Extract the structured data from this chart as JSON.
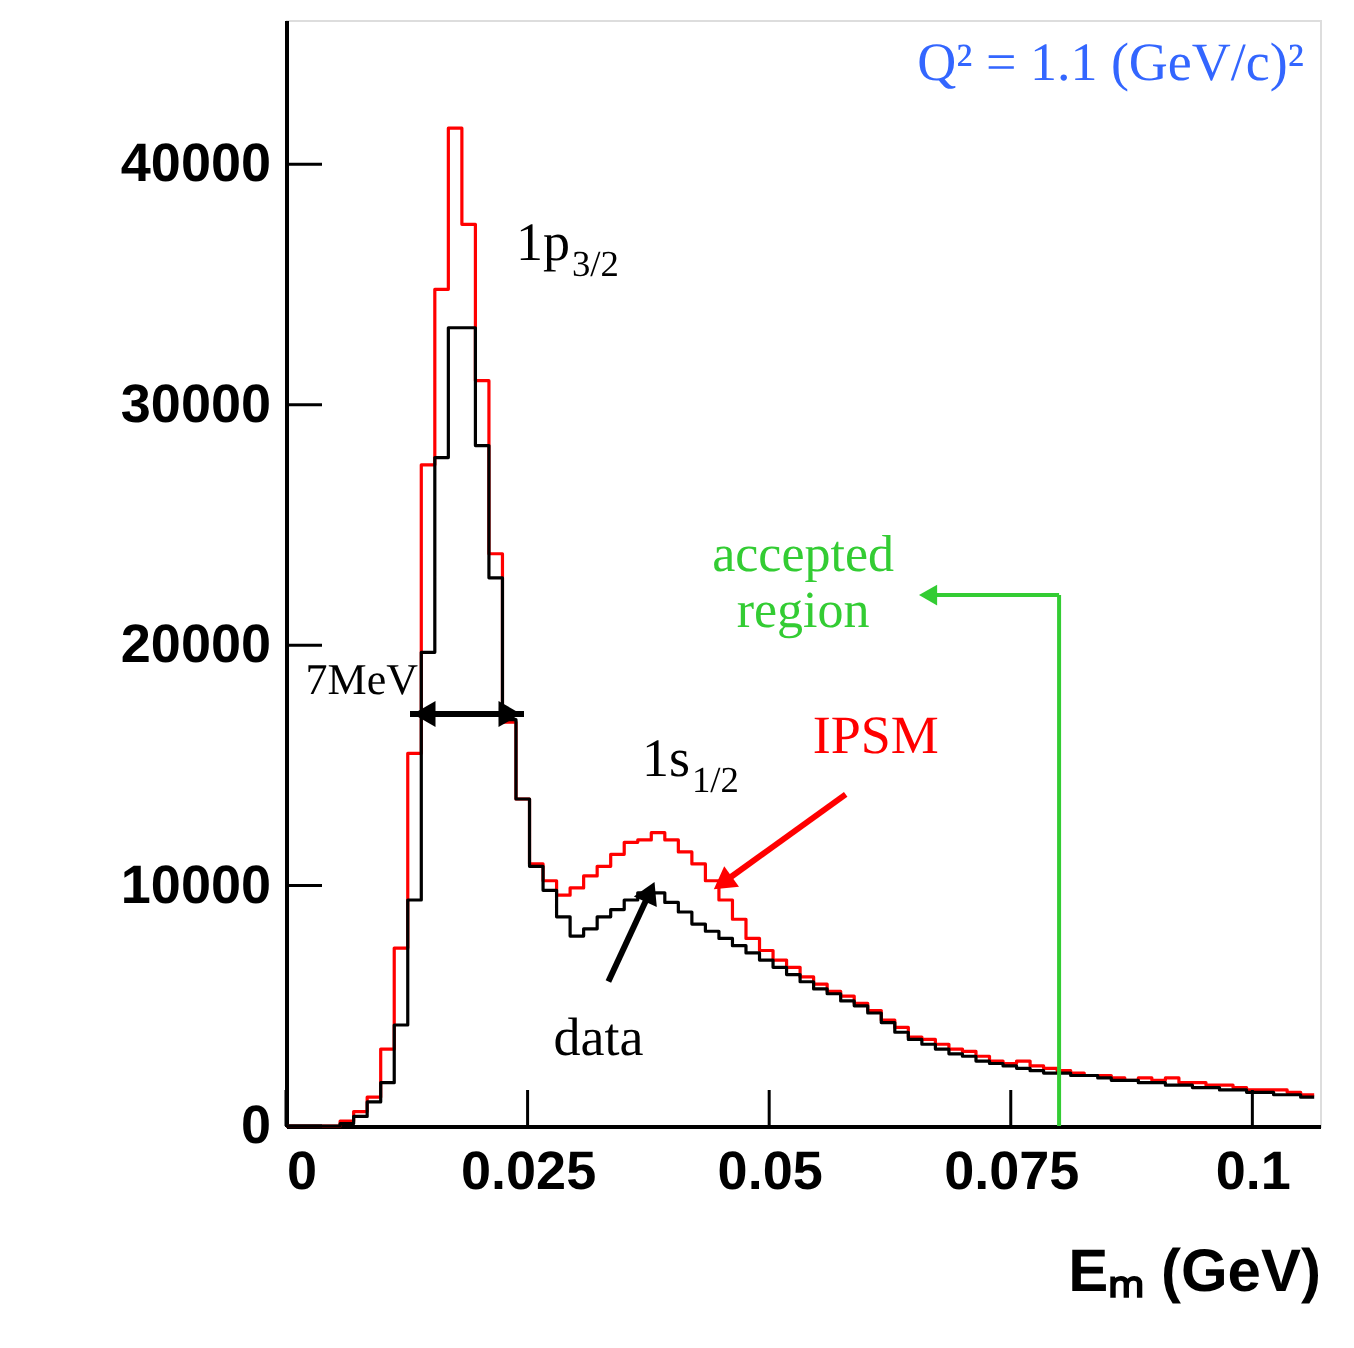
{
  "chart_data": {
    "type": "histogram",
    "xlabel": "Eₘ (GeV)",
    "bins": [
      0,
      0.0014,
      0.0028,
      0.0042,
      0.0056,
      0.007,
      0.0084,
      0.0098,
      0.0112,
      0.0126,
      0.014,
      0.0154,
      0.0168,
      0.0182,
      0.0196,
      0.021,
      0.0224,
      0.0238,
      0.0252,
      0.0266,
      0.028,
      0.0294,
      0.0308,
      0.0322,
      0.0336,
      0.035,
      0.0364,
      0.0378,
      0.0392,
      0.0406,
      0.042,
      0.0434,
      0.0448,
      0.0462,
      0.0476,
      0.049,
      0.0504,
      0.0518,
      0.0532,
      0.0546,
      0.056,
      0.0574,
      0.0588,
      0.0602,
      0.0616,
      0.063,
      0.0644,
      0.0658,
      0.0672,
      0.0686,
      0.07,
      0.0714,
      0.0728,
      0.0742,
      0.0756,
      0.077,
      0.0784,
      0.0798,
      0.0812,
      0.0826,
      0.084,
      0.0854,
      0.0868,
      0.0882,
      0.0896,
      0.091,
      0.0924,
      0.0938,
      0.0952,
      0.0966,
      0.098,
      0.0994,
      0.1008,
      0.1022,
      0.1036,
      0.105,
      0.1064
    ],
    "series": [
      {
        "color": "#ff0000",
        "values": [
          0,
          0,
          0,
          0,
          200,
          600,
          1200,
          3200,
          7400,
          15500,
          27500,
          34800,
          41500,
          37500,
          31000,
          23800,
          16800,
          13600,
          10900,
          10200,
          9600,
          9900,
          10400,
          10800,
          11300,
          11800,
          11900,
          12200,
          11900,
          11400,
          10900,
          10200,
          9400,
          8600,
          7800,
          7300,
          6900,
          6600,
          6200,
          5900,
          5600,
          5400,
          5100,
          4800,
          4400,
          4100,
          3700,
          3600,
          3400,
          3200,
          3100,
          2900,
          2700,
          2600,
          2700,
          2500,
          2400,
          2300,
          2200,
          2100,
          2100,
          2000,
          1900,
          2000,
          1900,
          2000,
          1800,
          1800,
          1700,
          1700,
          1600,
          1500,
          1500,
          1500,
          1400,
          1300
        ]
      },
      {
        "color": "#000000",
        "values": [
          0,
          0,
          0,
          0,
          100,
          400,
          1000,
          1800,
          4200,
          9400,
          19700,
          27800,
          33200,
          33200,
          28300,
          22800,
          16900,
          13600,
          10800,
          9800,
          8700,
          7900,
          8200,
          8700,
          9000,
          9400,
          9700,
          9700,
          9300,
          8900,
          8400,
          8100,
          7800,
          7500,
          7200,
          6900,
          6600,
          6300,
          6000,
          5700,
          5500,
          5200,
          5000,
          4700,
          4300,
          3900,
          3600,
          3400,
          3200,
          3000,
          2900,
          2700,
          2600,
          2500,
          2400,
          2300,
          2200,
          2200,
          2100,
          2100,
          2000,
          1900,
          1900,
          1800,
          1800,
          1700,
          1700,
          1600,
          1600,
          1500,
          1500,
          1400,
          1400,
          1300,
          1300,
          1200
        ]
      }
    ],
    "xlim": [
      0,
      0.107
    ],
    "ylim": [
      0,
      46000
    ],
    "xticks": [
      0,
      0.025,
      0.05,
      0.075,
      0.1
    ],
    "yticks": [
      0,
      10000,
      20000,
      30000,
      40000
    ],
    "annotations": [
      "Q² = 1.1 (GeV/c)²",
      "1p$_{3/2}$",
      "1s$_{1/2}$",
      "7MeV",
      {
        "text": "IPSM",
        "x": 0.0455,
        "y": 10200
      },
      {
        "text": "data",
        "x": 0.0375,
        "y": 9600
      }
    ],
    "ref_lines": [
      {
        "axis": "x",
        "value": 0.08,
        "label": "accepted region",
        "color": "#33cc33"
      }
    ]
  }
}
